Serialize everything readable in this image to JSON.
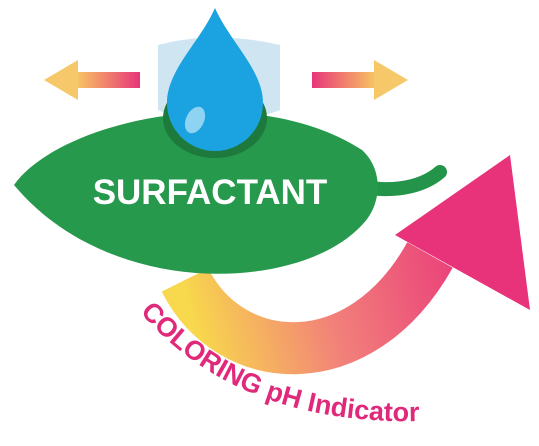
{
  "label": "SURFACTANT",
  "caption": "COLORING pH Indicator"
}
